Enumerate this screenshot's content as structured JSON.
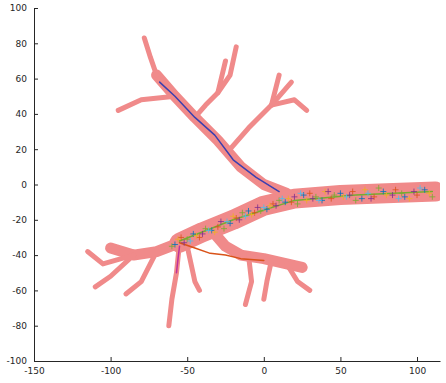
{
  "chart_data": {
    "type": "line",
    "xlim": [
      -150,
      115
    ],
    "ylim": [
      -100,
      100
    ],
    "xticks": [
      -150,
      -100,
      -50,
      0,
      50,
      100
    ],
    "yticks": [
      -100,
      -80,
      -60,
      -40,
      -20,
      0,
      20,
      40,
      60,
      80,
      100
    ],
    "grid": false,
    "series": [
      {
        "type": "line",
        "color": "#f08a8a",
        "line_style": "heavy",
        "x": [
          112,
          80,
          50,
          20,
          0,
          -20,
          -40,
          -55
        ],
        "values": [
          -4,
          -5,
          -6,
          -8,
          -12,
          -20,
          -27,
          -33
        ]
      },
      {
        "type": "line",
        "color": "#f08a8a",
        "line_style": "medium",
        "x": [
          15,
          0,
          -15,
          -30,
          -45,
          -58,
          -70
        ],
        "values": [
          -5,
          0,
          10,
          25,
          38,
          50,
          62
        ]
      },
      {
        "type": "line",
        "color": "#f08a8a",
        "line_style": "light",
        "x": [
          -70,
          -74,
          -78
        ],
        "values": [
          62,
          72,
          83
        ]
      },
      {
        "type": "line",
        "color": "#f08a8a",
        "line_style": "light",
        "x": [
          -45,
          -38,
          -30,
          -22,
          -18
        ],
        "values": [
          38,
          45,
          52,
          62,
          78
        ]
      },
      {
        "type": "line",
        "color": "#f08a8a",
        "line_style": "light",
        "x": [
          -30,
          -25
        ],
        "values": [
          52,
          70
        ]
      },
      {
        "type": "line",
        "color": "#f08a8a",
        "line_style": "light",
        "x": [
          -22,
          -10,
          5,
          18
        ],
        "values": [
          20,
          32,
          45,
          58
        ]
      },
      {
        "type": "line",
        "color": "#f08a8a",
        "line_style": "light",
        "x": [
          5,
          20,
          28
        ],
        "values": [
          45,
          48,
          42
        ]
      },
      {
        "type": "line",
        "color": "#f08a8a",
        "line_style": "light",
        "x": [
          5,
          10
        ],
        "values": [
          45,
          62
        ]
      },
      {
        "type": "line",
        "color": "#f08a8a",
        "line_style": "light",
        "x": [
          -58,
          -80,
          -95
        ],
        "values": [
          50,
          48,
          42
        ]
      },
      {
        "type": "line",
        "color": "#f08a8a",
        "line_style": "medium",
        "x": [
          -55,
          -70,
          -85,
          -100
        ],
        "values": [
          -33,
          -38,
          -40,
          -36
        ]
      },
      {
        "type": "line",
        "color": "#f08a8a",
        "line_style": "light",
        "x": [
          -85,
          -105,
          -115
        ],
        "values": [
          -40,
          -45,
          -38
        ]
      },
      {
        "type": "line",
        "color": "#f08a8a",
        "line_style": "light",
        "x": [
          -85,
          -100,
          -110
        ],
        "values": [
          -40,
          -52,
          -58
        ]
      },
      {
        "type": "line",
        "color": "#f08a8a",
        "line_style": "light",
        "x": [
          -70,
          -80,
          -90
        ],
        "values": [
          -38,
          -55,
          -62
        ]
      },
      {
        "type": "line",
        "color": "#f08a8a",
        "line_style": "light",
        "x": [
          -55,
          -57,
          -60,
          -62
        ],
        "values": [
          -33,
          -50,
          -65,
          -80
        ]
      },
      {
        "type": "line",
        "color": "#f08a8a",
        "line_style": "light",
        "x": [
          -50,
          -45,
          -42
        ],
        "values": [
          -35,
          -55,
          -60
        ]
      },
      {
        "type": "line",
        "color": "#f08a8a",
        "line_style": "medium",
        "x": [
          -35,
          -25,
          -15,
          0,
          15,
          25
        ],
        "values": [
          -25,
          -35,
          -40,
          -42,
          -45,
          -47
        ]
      },
      {
        "type": "line",
        "color": "#f08a8a",
        "line_style": "light",
        "x": [
          -10,
          -8,
          -12
        ],
        "values": [
          -40,
          -55,
          -68
        ]
      },
      {
        "type": "line",
        "color": "#f08a8a",
        "line_style": "light",
        "x": [
          5,
          2,
          0
        ],
        "values": [
          -43,
          -55,
          -65
        ]
      },
      {
        "type": "line",
        "color": "#f08a8a",
        "line_style": "light",
        "x": [
          15,
          22,
          30
        ],
        "values": [
          -45,
          -55,
          -60
        ]
      },
      {
        "type": "line",
        "color": "#3b3fb0",
        "line_style": "solid",
        "x": [
          10,
          -5,
          -20,
          -32,
          -45,
          -58,
          -68
        ],
        "values": [
          -4,
          4,
          14,
          28,
          38,
          50,
          58
        ]
      },
      {
        "type": "line",
        "color": "#D95319",
        "line_style": "solid",
        "x": [
          -55,
          -45,
          -35,
          -25,
          -15,
          0
        ],
        "values": [
          -33,
          -36,
          -39,
          -40,
          -42,
          -43
        ]
      },
      {
        "type": "line",
        "color": "#C0309A",
        "line_style": "solid",
        "x": [
          -55,
          -56,
          -57
        ],
        "values": [
          -35,
          -42,
          -50
        ]
      },
      {
        "type": "line",
        "color": "#77AC30",
        "line_style": "solid",
        "x": [
          110,
          60,
          20,
          -20,
          -55
        ],
        "values": [
          -4,
          -6,
          -9,
          -20,
          -32
        ]
      },
      {
        "type": "scatter",
        "color": "#0072BD",
        "marker": "plus",
        "x": [
          105,
          92,
          78,
          64,
          50,
          38,
          26,
          14,
          2,
          -10,
          -22,
          -34,
          -46,
          -58
        ],
        "values": [
          -3,
          -7,
          -4,
          -8,
          -5,
          -9,
          -6,
          -10,
          -14,
          -15,
          -22,
          -26,
          -28,
          -34
        ]
      },
      {
        "type": "scatter",
        "color": "#D95319",
        "marker": "plus",
        "x": [
          100,
          86,
          72,
          58,
          44,
          30,
          18,
          6,
          -6,
          -18,
          -30,
          -42,
          -54
        ],
        "values": [
          -6,
          -3,
          -7,
          -4,
          -8,
          -5,
          -10,
          -11,
          -16,
          -19,
          -24,
          -30,
          -30
        ]
      },
      {
        "type": "scatter",
        "color": "#EDB120",
        "marker": "plus",
        "x": [
          108,
          95,
          80,
          66,
          52,
          40,
          28,
          16,
          4,
          -8,
          -20,
          -32,
          -44,
          -56
        ],
        "values": [
          -5,
          -8,
          -6,
          -3,
          -7,
          -4,
          -9,
          -8,
          -12,
          -17,
          -18,
          -27,
          -29,
          -31
        ]
      },
      {
        "type": "scatter",
        "color": "#7E2F8E",
        "marker": "plus",
        "x": [
          98,
          84,
          70,
          56,
          42,
          32,
          20,
          8,
          -4,
          -16,
          -28,
          -40,
          -52
        ],
        "values": [
          -4,
          -6,
          -8,
          -6,
          -4,
          -8,
          -7,
          -12,
          -13,
          -20,
          -21,
          -28,
          -33
        ]
      },
      {
        "type": "scatter",
        "color": "#77AC30",
        "marker": "plus",
        "x": [
          110,
          90,
          75,
          60,
          46,
          34,
          22,
          10,
          -2,
          -14,
          -26,
          -38,
          -50,
          -60
        ],
        "values": [
          -7,
          -5,
          -2,
          -9,
          -6,
          -7,
          -11,
          -9,
          -15,
          -16,
          -25,
          -25,
          -31,
          -35
        ]
      },
      {
        "type": "scatter",
        "color": "#4DBEEE",
        "marker": "plus",
        "x": [
          102,
          88,
          68,
          54,
          36,
          24,
          12,
          0,
          -12,
          -24,
          -36,
          -48
        ],
        "values": [
          -2,
          -8,
          -5,
          -7,
          -9,
          -5,
          -8,
          -13,
          -18,
          -21,
          -26,
          -32
        ]
      }
    ]
  }
}
